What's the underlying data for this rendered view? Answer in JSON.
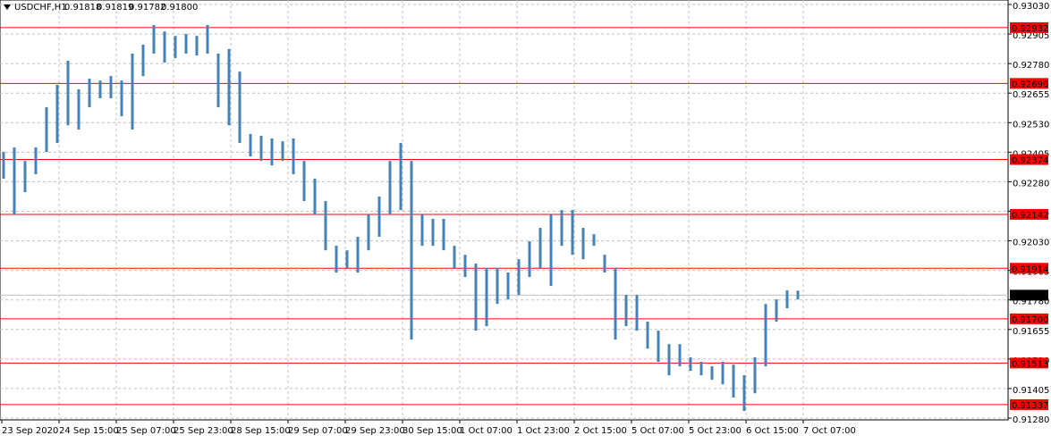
{
  "chart_data": {
    "type": "range",
    "title": "USDCHF,H1",
    "ohlc_last": [
      {
        "value": 0.91818,
        "label": "0.91818"
      },
      {
        "value": 0.91819,
        "label": "0.91819"
      },
      {
        "value": 0.91782,
        "label": "0.91782"
      },
      {
        "value": 0.918,
        "label": "0.91800"
      }
    ],
    "color": "#4682b4",
    "level_color": "#ff0000",
    "grid": true,
    "high": [
      0.92406,
      0.92425,
      0.92368,
      0.92425,
      0.92595,
      0.9269,
      0.92792,
      0.92671,
      0.92716,
      0.92708,
      0.92727,
      0.92708,
      0.92822,
      0.9286,
      0.92943,
      0.92916,
      0.92897,
      0.92905,
      0.92897,
      0.92943,
      0.92822,
      0.92841,
      0.92746,
      0.92482,
      0.92474,
      0.92463,
      0.92451,
      0.92463,
      0.92368,
      0.92293,
      0.92198,
      0.92009,
      0.9199,
      0.92047,
      0.92141,
      0.92217,
      0.92368,
      0.92444,
      0.92368,
      0.92141,
      0.92123,
      0.92123,
      0.92009,
      0.91971,
      0.91934,
      0.91915,
      0.91915,
      0.91896,
      0.91952,
      0.92028,
      0.92085,
      0.92141,
      0.9216,
      0.9216,
      0.92085,
      0.92058,
      0.91971,
      0.91915,
      0.91801,
      0.91801,
      0.91688,
      0.9165,
      0.91593,
      0.91593,
      0.91537,
      0.91518,
      0.91499,
      0.91518,
      0.91506,
      0.91461,
      0.91537,
      0.91763,
      0.91782,
      0.9182,
      0.91819
    ],
    "low": [
      0.92293,
      0.92141,
      0.92236,
      0.92312,
      0.92406,
      0.92444,
      0.92519,
      0.92501,
      0.92595,
      0.92633,
      0.92633,
      0.92557,
      0.92501,
      0.92727,
      0.92822,
      0.92784,
      0.92803,
      0.92822,
      0.92814,
      0.92822,
      0.92595,
      0.92519,
      0.92444,
      0.92387,
      0.92368,
      0.92349,
      0.92368,
      0.92312,
      0.92198,
      0.92141,
      0.9199,
      0.91896,
      0.91915,
      0.91896,
      0.9199,
      0.92047,
      0.92141,
      0.9216,
      0.91612,
      0.92009,
      0.92009,
      0.9199,
      0.91915,
      0.91877,
      0.9165,
      0.91669,
      0.91763,
      0.91782,
      0.91801,
      0.91877,
      0.91915,
      0.91839,
      0.92009,
      0.91971,
      0.91952,
      0.92009,
      0.91896,
      0.91612,
      0.91669,
      0.9165,
      0.91574,
      0.91518,
      0.91461,
      0.91499,
      0.9148,
      0.91461,
      0.91442,
      0.91423,
      0.91367,
      0.9131,
      0.91385,
      0.91499,
      0.91688,
      0.91745,
      0.91782
    ],
    "ylim": [
      0.9128,
      0.9303
    ],
    "yticks": [
      {
        "value": 0.9303,
        "label": "0.93030"
      },
      {
        "value": 0.92905,
        "label": "0.92905"
      },
      {
        "value": 0.9278,
        "label": "0.92780"
      },
      {
        "value": 0.92655,
        "label": "0.92655"
      },
      {
        "value": 0.9253,
        "label": "0.92530"
      },
      {
        "value": 0.92405,
        "label": "0.92405"
      },
      {
        "value": 0.9228,
        "label": "0.92280"
      },
      {
        "value": 0.92155,
        "label": "0.92155"
      },
      {
        "value": 0.9203,
        "label": "0.92030"
      },
      {
        "value": 0.91905,
        "label": "0.91905"
      },
      {
        "value": 0.9178,
        "label": "0.91780"
      },
      {
        "value": 0.91655,
        "label": "0.91655"
      },
      {
        "value": 0.9153,
        "label": "0.91530"
      },
      {
        "value": 0.91405,
        "label": "0.91405"
      },
      {
        "value": 0.9128,
        "label": "0.91280"
      }
    ],
    "levels": [
      {
        "value": 0.92932,
        "label": "0.92932"
      },
      {
        "value": 0.92696,
        "label": "0.92696"
      },
      {
        "value": 0.92374,
        "label": "0.92374"
      },
      {
        "value": 0.92142,
        "label": "0.92142"
      },
      {
        "value": 0.91914,
        "label": "0.91914"
      },
      {
        "value": 0.917,
        "label": "0.91700"
      },
      {
        "value": 0.91513,
        "label": "0.91513"
      },
      {
        "value": 0.91337,
        "label": "0.91337"
      }
    ],
    "current_price": {
      "value": 0.918,
      "label": "0.91800"
    },
    "xticks": [
      "23 Sep 2020",
      "24 Sep 15:00",
      "25 Sep 07:00",
      "25 Sep 23:00",
      "28 Sep 15:00",
      "29 Sep 07:00",
      "29 Sep 23:00",
      "30 Sep 15:00",
      "1 Oct 07:00",
      "1 Oct 23:00",
      "2 Oct 15:00",
      "5 Oct 07:00",
      "5 Oct 23:00",
      "6 Oct 15:00",
      "7 Oct 07:00"
    ]
  }
}
